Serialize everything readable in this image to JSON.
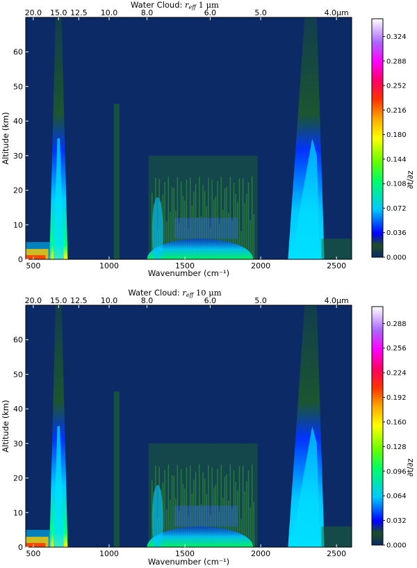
{
  "chart_data": [
    {
      "type": "heatmap",
      "title": "Water Cloud: r_eff 1 μm",
      "title_prefix": "Water Cloud:",
      "title_suffix": "1 μm",
      "xlabel": "Wavenumber (cm⁻¹)",
      "ylabel": "Altitude (km)",
      "colorbar_label": "∂t/∂z",
      "xlim": [
        450,
        2600
      ],
      "ylim": [
        0,
        70
      ],
      "x_ticks": [
        500,
        1000,
        1500,
        2000,
        2500
      ],
      "y_ticks": [
        0,
        10,
        20,
        30,
        40,
        50,
        60
      ],
      "top_axis_ticks": [
        {
          "label": "20.0",
          "wavenumber": 500
        },
        {
          "label": "15.0",
          "wavenumber": 666.7
        },
        {
          "label": "12.5",
          "wavenumber": 800
        },
        {
          "label": "10.0",
          "wavenumber": 1000
        },
        {
          "label": "8.0",
          "wavenumber": 1250
        },
        {
          "label": "6.0",
          "wavenumber": 1666.7
        },
        {
          "label": "5.0",
          "wavenumber": 2000
        },
        {
          "label": "4.0μm",
          "wavenumber": 2500
        }
      ],
      "colorbar_max": 0.35,
      "colorbar_ticks": [
        "0.000",
        "0.036",
        "0.072",
        "0.108",
        "0.144",
        "0.180",
        "0.216",
        "0.252",
        "0.288",
        "0.324"
      ],
      "features": [
        {
          "wavenumber": 667,
          "altitude_peak_km": 5,
          "altitude_top_km": 70,
          "width_cm": 45,
          "max_value": 0.09
        },
        {
          "wavenumber": 1600,
          "altitude_peak_km": 2,
          "altitude_top_km": 30,
          "width_cm": 350,
          "max_value": 0.25
        },
        {
          "wavenumber": 1050,
          "altitude_peak_km": 15,
          "altitude_top_km": 45,
          "width_cm": 20,
          "max_value": 0.04
        },
        {
          "wavenumber": 2330,
          "altitude_peak_km": 10,
          "altitude_top_km": 70,
          "width_cm": 60,
          "max_value": 0.09
        },
        {
          "wavenumber": 550,
          "altitude_peak_km": 1,
          "altitude_top_km": 5,
          "width_cm": 100,
          "max_value": 0.2
        }
      ]
    },
    {
      "type": "heatmap",
      "title": "Water Cloud: r_eff 10 μm",
      "title_prefix": "Water Cloud:",
      "title_suffix": "10 μm",
      "xlabel": "Wavenumber (cm⁻¹)",
      "ylabel": "Altitude (km)",
      "colorbar_label": "∂t/∂z",
      "xlim": [
        450,
        2600
      ],
      "ylim": [
        0,
        70
      ],
      "x_ticks": [
        500,
        1000,
        1500,
        2000,
        2500
      ],
      "y_ticks": [
        0,
        10,
        20,
        30,
        40,
        50,
        60
      ],
      "top_axis_ticks": [
        {
          "label": "20.0",
          "wavenumber": 500
        },
        {
          "label": "15.0",
          "wavenumber": 666.7
        },
        {
          "label": "12.5",
          "wavenumber": 800
        },
        {
          "label": "10.0",
          "wavenumber": 1000
        },
        {
          "label": "8.0",
          "wavenumber": 1250
        },
        {
          "label": "6.0",
          "wavenumber": 1666.7
        },
        {
          "label": "5.0",
          "wavenumber": 2000
        },
        {
          "label": "4.0μm",
          "wavenumber": 2500
        }
      ],
      "colorbar_max": 0.31,
      "colorbar_ticks": [
        "0.000",
        "0.032",
        "0.064",
        "0.096",
        "0.128",
        "0.160",
        "0.192",
        "0.224",
        "0.256",
        "0.288"
      ],
      "features": [
        {
          "wavenumber": 667,
          "altitude_peak_km": 5,
          "altitude_top_km": 70,
          "width_cm": 45,
          "max_value": 0.09
        },
        {
          "wavenumber": 1600,
          "altitude_peak_km": 2,
          "altitude_top_km": 30,
          "width_cm": 350,
          "max_value": 0.22
        },
        {
          "wavenumber": 1050,
          "altitude_peak_km": 15,
          "altitude_top_km": 45,
          "width_cm": 20,
          "max_value": 0.04
        },
        {
          "wavenumber": 2330,
          "altitude_peak_km": 10,
          "altitude_top_km": 70,
          "width_cm": 60,
          "max_value": 0.09
        },
        {
          "wavenumber": 550,
          "altitude_peak_km": 1,
          "altitude_top_km": 5,
          "width_cm": 100,
          "max_value": 0.15
        }
      ]
    }
  ],
  "colors": {
    "background": "#0b2a66",
    "colormap": [
      "#0b2a66",
      "#175017",
      "#00ff00",
      "#00e5ff",
      "#0000ff",
      "#ffff00",
      "#ff0000",
      "#ff00ff",
      "#ffffff"
    ]
  }
}
